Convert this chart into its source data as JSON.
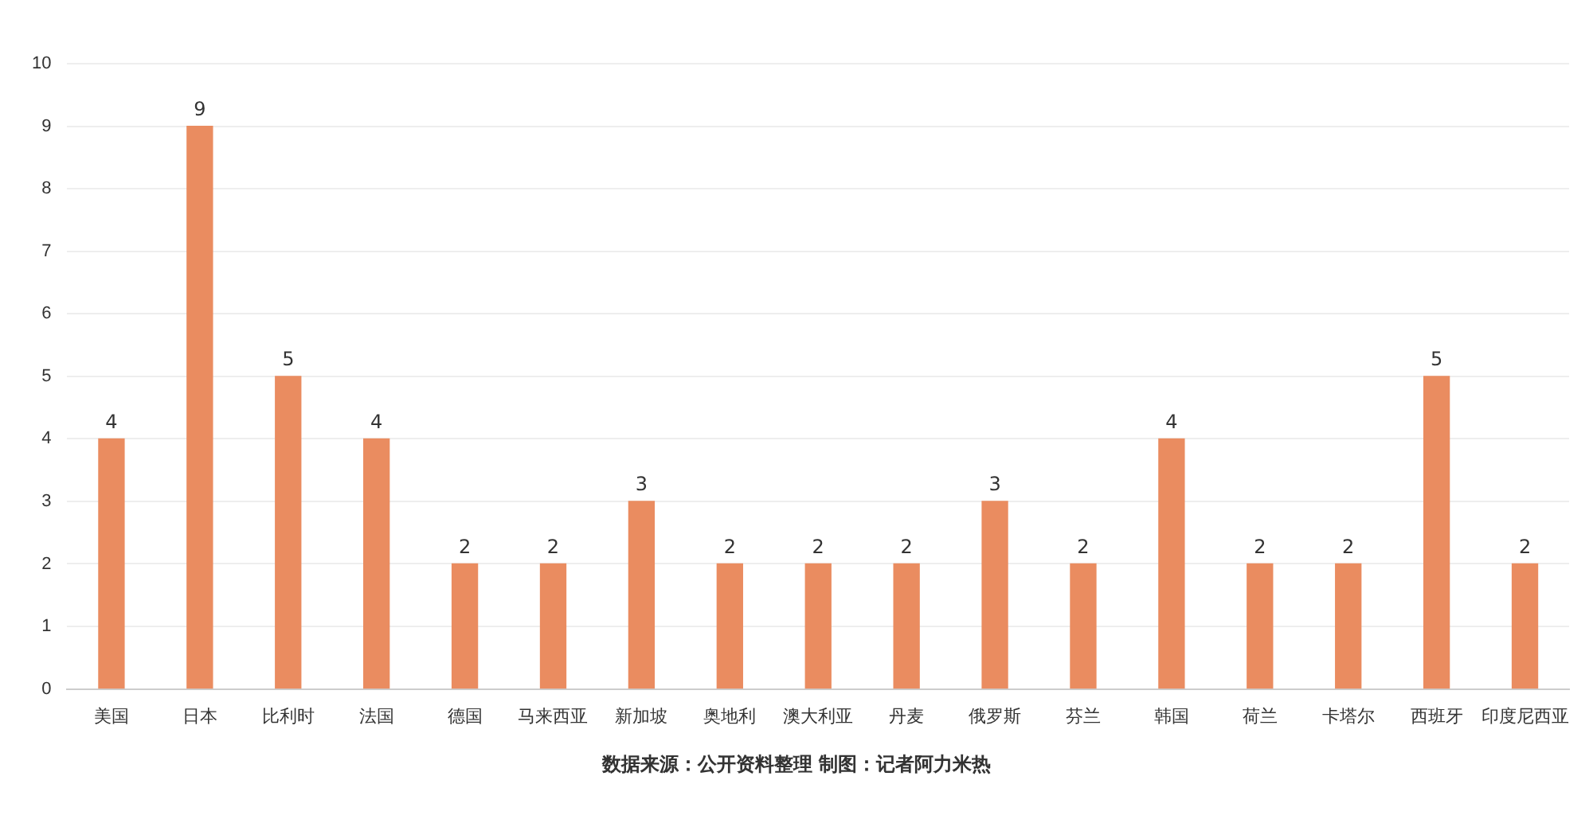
{
  "chart_data": {
    "type": "bar",
    "categories": [
      "美国",
      "日本",
      "比利时",
      "法国",
      "德国",
      "马来西亚",
      "新加坡",
      "奥地利",
      "澳大利亚",
      "丹麦",
      "俄罗斯",
      "芬兰",
      "韩国",
      "荷兰",
      "卡塔尔",
      "西班牙",
      "印度尼西亚"
    ],
    "values": [
      4,
      9,
      5,
      4,
      2,
      2,
      3,
      2,
      2,
      2,
      3,
      2,
      4,
      2,
      2,
      5,
      2
    ],
    "color": "#ea8c60",
    "ylim": [
      0,
      10
    ],
    "yticks": [
      0,
      1,
      2,
      3,
      4,
      5,
      6,
      7,
      8,
      9,
      10
    ],
    "grid": "y",
    "data_labels": true,
    "annotations": [
      "数据来源：公开资料整理 制图：记者阿力米热"
    ]
  }
}
